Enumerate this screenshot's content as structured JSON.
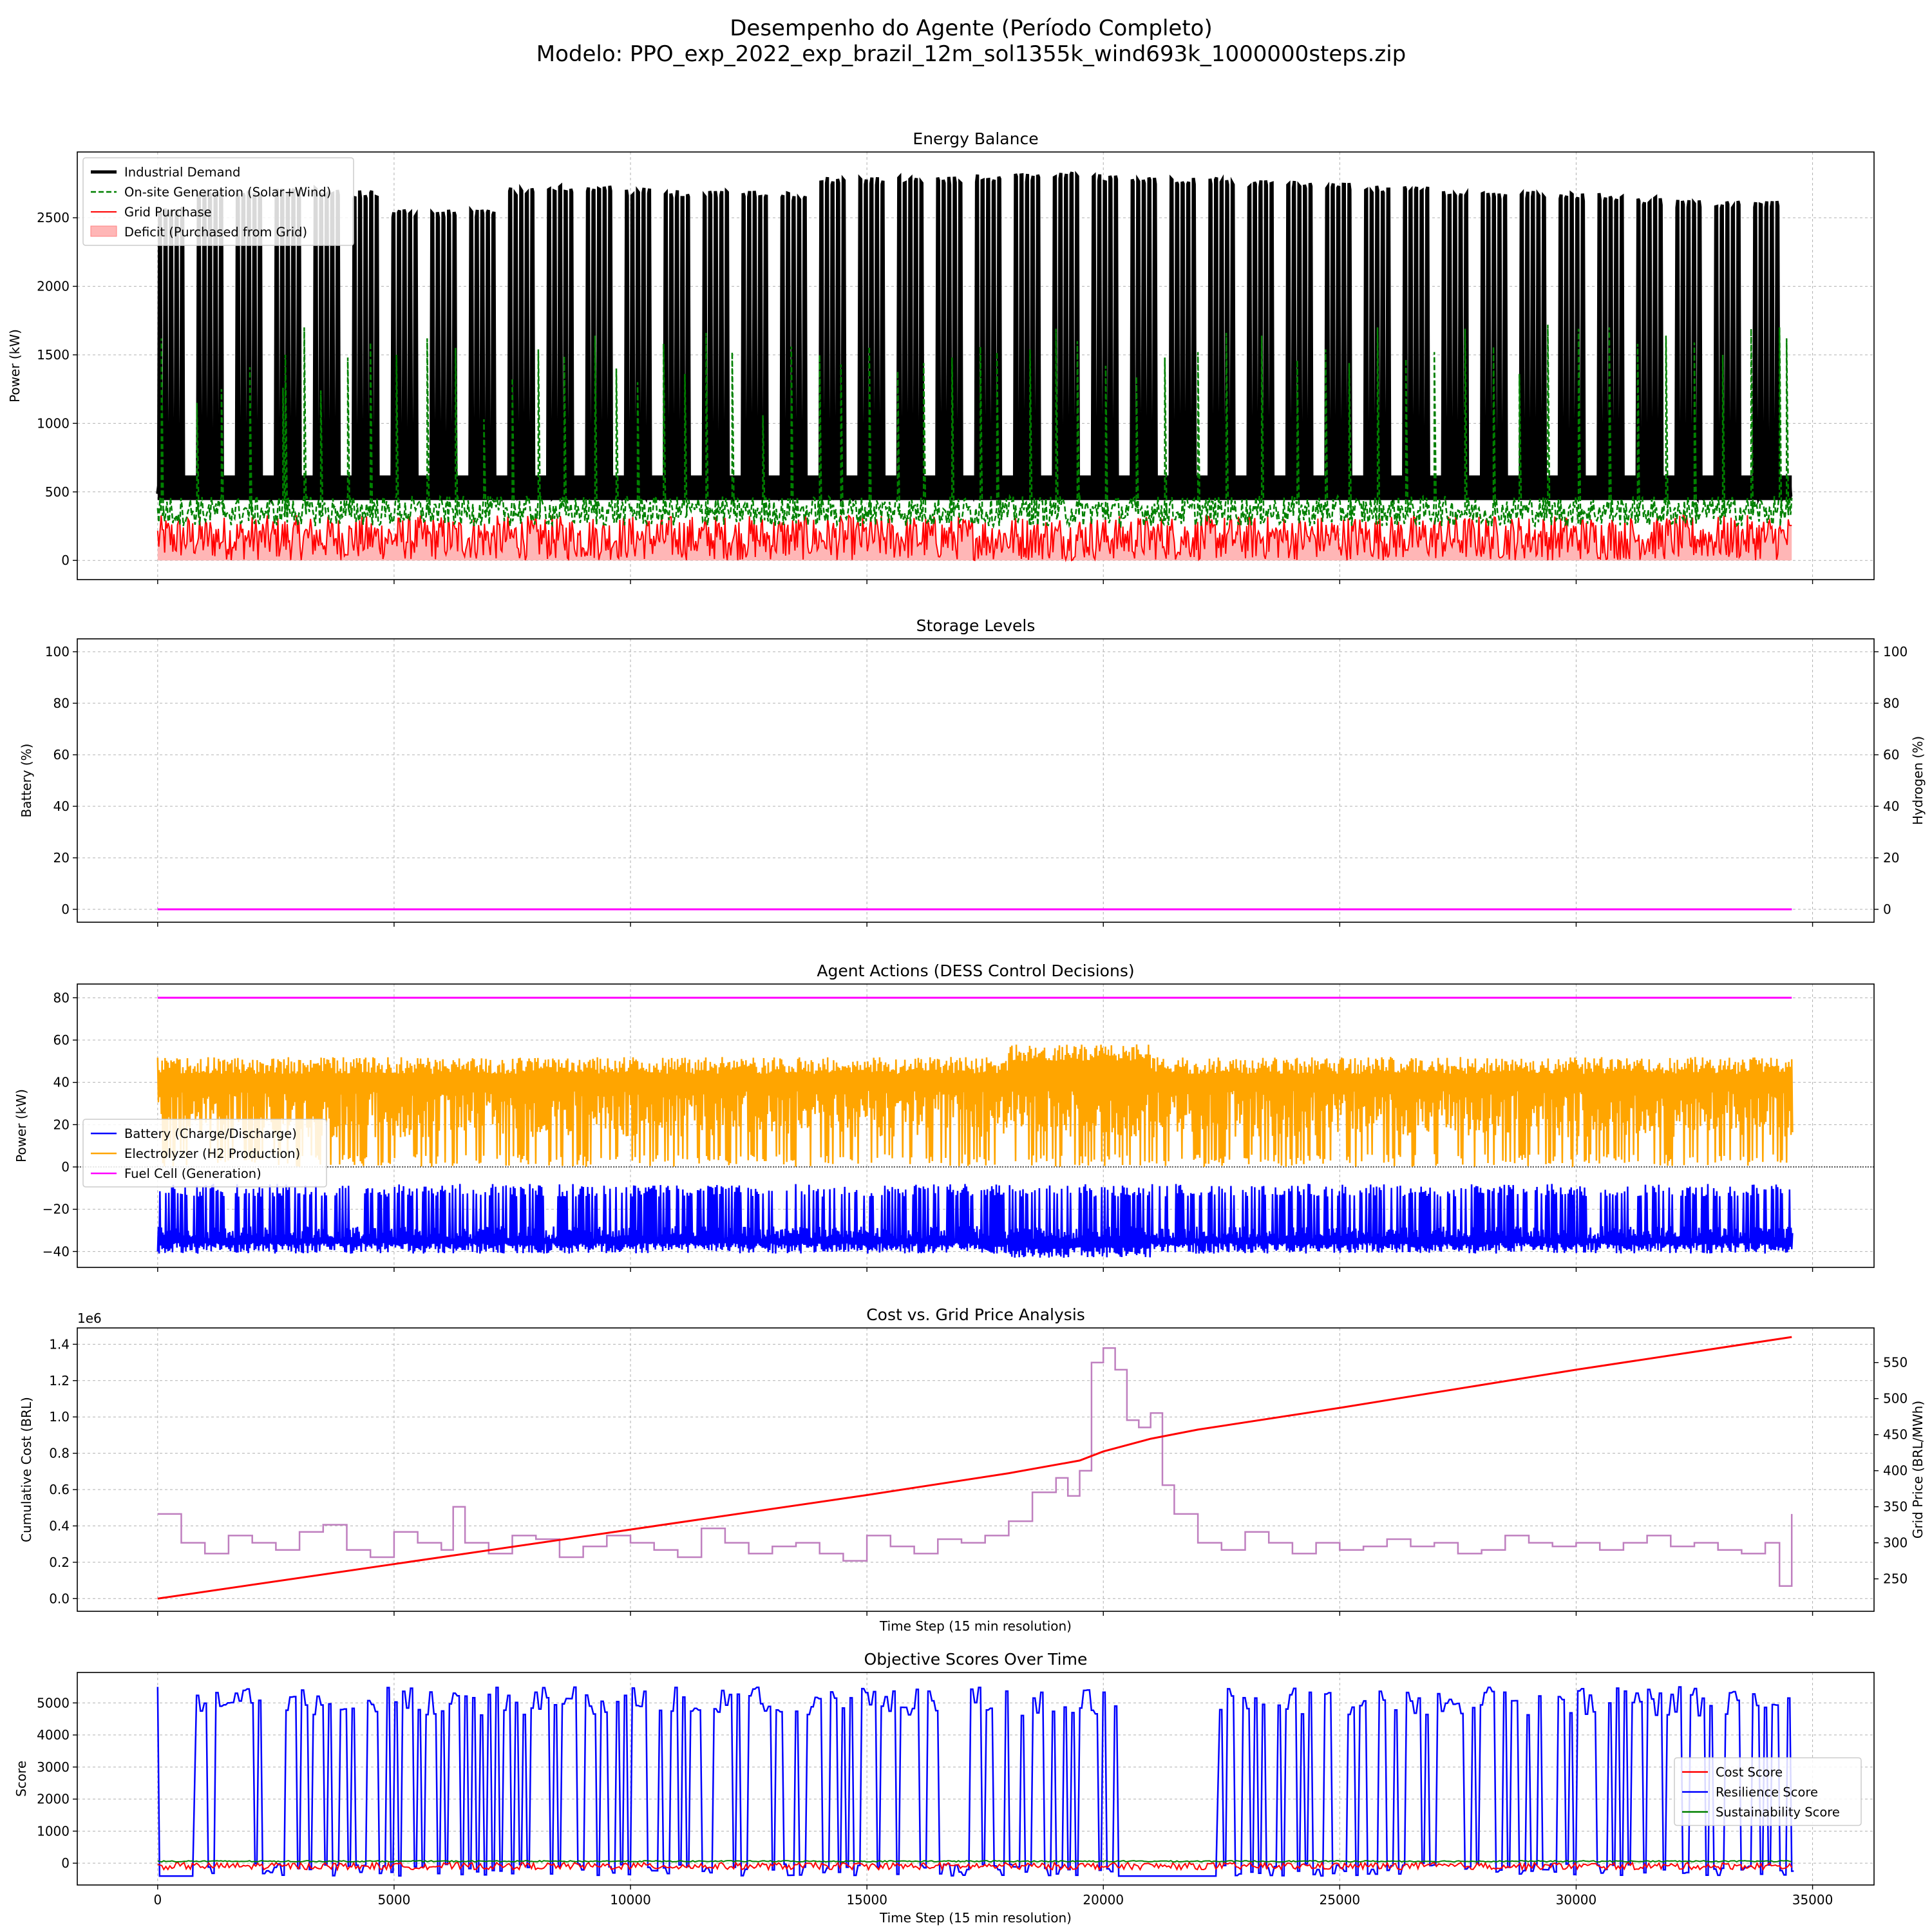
{
  "figure": {
    "title_line1": "Desempenho do Agente (Período Completo)",
    "title_line2": "Modelo: PPO_exp_2022_exp_brazil_12m_sol1355k_wind693k_1000000steps.zip"
  },
  "chart_data": [
    {
      "type": "line",
      "title": "Energy Balance",
      "xlabel": "",
      "ylabel": "Power (kW)",
      "xlim": [
        -1700,
        36300
      ],
      "ylim": [
        -140,
        2980
      ],
      "xticks": [
        0,
        5000,
        10000,
        15000,
        20000,
        25000,
        30000,
        35000
      ],
      "xtick_labels_visible": false,
      "yticks": [
        0,
        500,
        1000,
        1500,
        2000,
        2500
      ],
      "ytick_labels": [
        "0",
        "500",
        "1000",
        "1500",
        "2000",
        "2500"
      ],
      "grid": true,
      "legend_position": "upper-left",
      "legend": [
        {
          "label": "Industrial Demand",
          "color": "#000000",
          "style": "solid",
          "width": 5
        },
        {
          "label": "On-site Generation (Solar+Wind)",
          "color": "#008000",
          "style": "dashed",
          "width": 2.5
        },
        {
          "label": "Grid Purchase",
          "color": "#ff0000",
          "style": "solid",
          "width": 2
        },
        {
          "label": "Deficit (Purchased from Grid)",
          "color": "#ffb6b6",
          "style": "patch",
          "width": 0
        }
      ],
      "series": [
        {
          "name": "Industrial Demand",
          "color": "#000000",
          "x_range": [
            0,
            34560
          ],
          "pattern": "weekday plateaus between ~450 kW baseline and daily peaks",
          "weekly_peaks": [
            2580,
            2700,
            2700,
            2720,
            2720,
            2700,
            2560,
            2560,
            2560,
            2720,
            2740,
            2740,
            2720,
            2700,
            2700,
            2700,
            2680,
            2800,
            2800,
            2800,
            2800,
            2820,
            2820,
            2840,
            2820,
            2800,
            2800,
            2800,
            2780,
            2770,
            2760,
            2740,
            2740,
            2700,
            2680,
            2700,
            2680,
            2680,
            2650,
            2630,
            2630,
            2630
          ],
          "baseline": 450
        },
        {
          "name": "On-site Generation (Solar+Wind)",
          "color": "#008000",
          "band": [
            250,
            470
          ],
          "spikes": [
            [
              80,
              1620
            ],
            [
              830,
              1150
            ],
            [
              1350,
              1250
            ],
            [
              1950,
              1410
            ],
            [
              2650,
              1260
            ],
            [
              2700,
              1500
            ],
            [
              3100,
              1700
            ],
            [
              3450,
              1240
            ],
            [
              4020,
              1480
            ],
            [
              4500,
              1590
            ],
            [
              5050,
              1500
            ],
            [
              5700,
              1620
            ],
            [
              6300,
              1550
            ],
            [
              6900,
              1030
            ],
            [
              7500,
              1330
            ],
            [
              8050,
              1540
            ],
            [
              8600,
              1490
            ],
            [
              9250,
              1640
            ],
            [
              9700,
              1400
            ],
            [
              10150,
              1300
            ],
            [
              10700,
              1580
            ],
            [
              11150,
              1360
            ],
            [
              11600,
              1660
            ],
            [
              12150,
              1520
            ],
            [
              12800,
              1060
            ],
            [
              13400,
              1560
            ],
            [
              14000,
              1500
            ],
            [
              14450,
              1430
            ],
            [
              15050,
              1560
            ],
            [
              15650,
              1380
            ],
            [
              16200,
              1440
            ],
            [
              16800,
              1480
            ],
            [
              17400,
              1560
            ],
            [
              17750,
              1520
            ],
            [
              18450,
              1540
            ],
            [
              19000,
              1690
            ],
            [
              19450,
              1600
            ],
            [
              20050,
              1420
            ],
            [
              20700,
              1340
            ],
            [
              21300,
              1480
            ],
            [
              22000,
              1520
            ],
            [
              22600,
              1660
            ],
            [
              23350,
              1640
            ],
            [
              24100,
              1460
            ],
            [
              24700,
              1540
            ],
            [
              25200,
              1440
            ],
            [
              25800,
              1700
            ],
            [
              26400,
              1470
            ],
            [
              27000,
              1520
            ],
            [
              27650,
              1690
            ],
            [
              28250,
              1560
            ],
            [
              28800,
              1360
            ],
            [
              29400,
              1720
            ],
            [
              30050,
              1690
            ],
            [
              30700,
              1700
            ],
            [
              31300,
              1580
            ],
            [
              31900,
              1640
            ],
            [
              32500,
              1590
            ],
            [
              33100,
              1500
            ],
            [
              33700,
              1690
            ],
            [
              34300,
              1700
            ],
            [
              34450,
              1620
            ]
          ]
        },
        {
          "name": "Grid Purchase",
          "color": "#ff0000",
          "band": [
            0,
            330
          ]
        }
      ]
    },
    {
      "type": "line",
      "title": "Storage Levels",
      "xlabel": "",
      "ylabel": "Battery (%)",
      "ylabel_color": "#0000ff",
      "y2label": "Hydrogen (%)",
      "y2label_color": "#ff00ff",
      "xlim": [
        -1700,
        36300
      ],
      "ylim": [
        -5,
        105
      ],
      "y2lim": [
        -5,
        105
      ],
      "xticks": [
        0,
        5000,
        10000,
        15000,
        20000,
        25000,
        30000,
        35000
      ],
      "xtick_labels_visible": false,
      "yticks": [
        0,
        20,
        40,
        60,
        80,
        100
      ],
      "ytick_labels": [
        "0",
        "20",
        "40",
        "60",
        "80",
        "100"
      ],
      "y2ticks": [
        0,
        20,
        40,
        60,
        80,
        100
      ],
      "y2tick_labels": [
        "0",
        "20",
        "40",
        "60",
        "80",
        "100"
      ],
      "grid": true,
      "series": [
        {
          "axis": "left",
          "color": "#0000ff",
          "x": [
            0,
            34560
          ],
          "values": [
            0,
            0
          ]
        },
        {
          "axis": "right",
          "color": "#ff00ff",
          "x": [
            0,
            34560
          ],
          "values": [
            0,
            0
          ]
        }
      ]
    },
    {
      "type": "line",
      "title": "Agent Actions (DESS Control Decisions)",
      "xlabel": "",
      "ylabel": "Power (kW)",
      "xlim": [
        -1700,
        36300
      ],
      "ylim": [
        -47.5,
        86.5
      ],
      "xticks": [
        0,
        5000,
        10000,
        15000,
        20000,
        25000,
        30000,
        35000
      ],
      "xtick_labels_visible": false,
      "yticks": [
        -40,
        -20,
        0,
        20,
        40,
        60,
        80
      ],
      "ytick_labels": [
        "−40",
        "−20",
        "0",
        "20",
        "40",
        "60",
        "80"
      ],
      "zero_line": true,
      "grid": true,
      "legend_position": "center-left",
      "legend": [
        {
          "label": "Battery (Charge/Discharge)",
          "color": "#0000ff"
        },
        {
          "label": "Electrolyzer (H2 Production)",
          "color": "#ffa500"
        },
        {
          "label": "Fuel Cell (Generation)",
          "color": "#ff00ff"
        }
      ],
      "series": [
        {
          "name": "Battery (Charge/Discharge)",
          "color": "#0000ff",
          "range_low": -42,
          "range_high": -8
        },
        {
          "name": "Electrolyzer (H2 Production)",
          "color": "#ffa500",
          "range_low": 0,
          "range_high": 57
        },
        {
          "name": "Fuel Cell (Generation)",
          "color": "#ff00ff",
          "x": [
            0,
            34560
          ],
          "values": [
            80,
            80
          ]
        }
      ]
    },
    {
      "type": "line",
      "title": "Cost vs. Grid Price Analysis",
      "xlabel": "Time Step (15 min resolution)",
      "ylabel": "Cumulative Cost (BRL)",
      "ylabel_color": "#ff0000",
      "y_offset_label": "1e6",
      "y2label": "Grid Price (BRL/MWh)",
      "y2label_color": "#800080",
      "xlim": [
        -1700,
        36300
      ],
      "ylim": [
        -0.07,
        1.49
      ],
      "y2lim": [
        205,
        598
      ],
      "xticks": [
        0,
        5000,
        10000,
        15000,
        20000,
        25000,
        30000,
        35000
      ],
      "xtick_labels_visible": false,
      "yticks": [
        0.0,
        0.2,
        0.4,
        0.6,
        0.8,
        1.0,
        1.2,
        1.4
      ],
      "ytick_labels": [
        "0.0",
        "0.2",
        "0.4",
        "0.6",
        "0.8",
        "1.0",
        "1.2",
        "1.4"
      ],
      "y2ticks": [
        250,
        300,
        350,
        400,
        450,
        500,
        550
      ],
      "y2tick_labels": [
        "250",
        "300",
        "350",
        "400",
        "450",
        "500",
        "550"
      ],
      "grid": true,
      "series": [
        {
          "name": "Cumulative Cost",
          "axis": "left",
          "color": "#ff0000",
          "x": [
            0,
            5000,
            10000,
            15000,
            18000,
            19500,
            20000,
            21000,
            22000,
            25000,
            30000,
            34560
          ],
          "values": [
            0.0,
            0.19,
            0.38,
            0.57,
            0.69,
            0.76,
            0.81,
            0.88,
            0.93,
            1.05,
            1.26,
            1.44
          ]
        },
        {
          "name": "Grid Price",
          "axis": "right",
          "color": "#bf7fbf",
          "x": [
            0,
            500,
            1000,
            1500,
            2000,
            2500,
            3000,
            3500,
            4000,
            4500,
            5000,
            5500,
            6000,
            6250,
            6500,
            7000,
            7500,
            8000,
            8500,
            9000,
            9500,
            10000,
            10500,
            11000,
            11500,
            12000,
            12500,
            13000,
            13500,
            14000,
            14500,
            15000,
            15500,
            16000,
            16500,
            17000,
            17500,
            18000,
            18500,
            19000,
            19250,
            19500,
            19750,
            20000,
            20250,
            20500,
            20750,
            21000,
            21250,
            21500,
            22000,
            22500,
            23000,
            23500,
            24000,
            24500,
            25000,
            25500,
            26000,
            26500,
            27000,
            27500,
            28000,
            28500,
            29000,
            29500,
            30000,
            30500,
            31000,
            31500,
            32000,
            32500,
            33000,
            33500,
            34000,
            34300,
            34560
          ],
          "values": [
            340,
            300,
            285,
            310,
            300,
            290,
            315,
            325,
            290,
            280,
            315,
            300,
            290,
            350,
            300,
            285,
            310,
            305,
            280,
            295,
            310,
            300,
            290,
            280,
            320,
            300,
            285,
            295,
            300,
            285,
            275,
            310,
            295,
            285,
            305,
            300,
            310,
            330,
            370,
            390,
            365,
            400,
            550,
            570,
            540,
            470,
            460,
            480,
            380,
            340,
            300,
            290,
            315,
            300,
            285,
            300,
            290,
            295,
            305,
            295,
            300,
            285,
            290,
            310,
            300,
            295,
            300,
            290,
            300,
            310,
            295,
            300,
            290,
            285,
            300,
            240,
            340
          ]
        }
      ]
    },
    {
      "type": "line",
      "title": "Objective Scores Over Time",
      "xlabel": "Time Step (15 min resolution)",
      "ylabel": "Score",
      "xlim": [
        -1700,
        36300
      ],
      "ylim": [
        -680,
        5950
      ],
      "xticks": [
        0,
        5000,
        10000,
        15000,
        20000,
        25000,
        30000,
        35000
      ],
      "xtick_labels": [
        "0",
        "5000",
        "10000",
        "15000",
        "20000",
        "25000",
        "30000",
        "35000"
      ],
      "yticks": [
        0,
        1000,
        2000,
        3000,
        4000,
        5000
      ],
      "ytick_labels": [
        "0",
        "1000",
        "2000",
        "3000",
        "4000",
        "5000"
      ],
      "grid": true,
      "legend_position": "center-right",
      "legend": [
        {
          "label": "Cost Score",
          "color": "#ff0000"
        },
        {
          "label": "Resilience Score",
          "color": "#0000ff"
        },
        {
          "label": "Sustainability Score",
          "color": "#008000"
        }
      ],
      "series": [
        {
          "name": "Resilience Score",
          "color": "#0000ff",
          "high": 5500,
          "low": -400,
          "gap_x": [
            20300,
            22400
          ]
        },
        {
          "name": "Cost Score",
          "color": "#ff0000",
          "range": [
            -200,
            20
          ]
        },
        {
          "name": "Sustainability Score",
          "color": "#008000",
          "range": [
            40,
            80
          ]
        }
      ]
    }
  ]
}
